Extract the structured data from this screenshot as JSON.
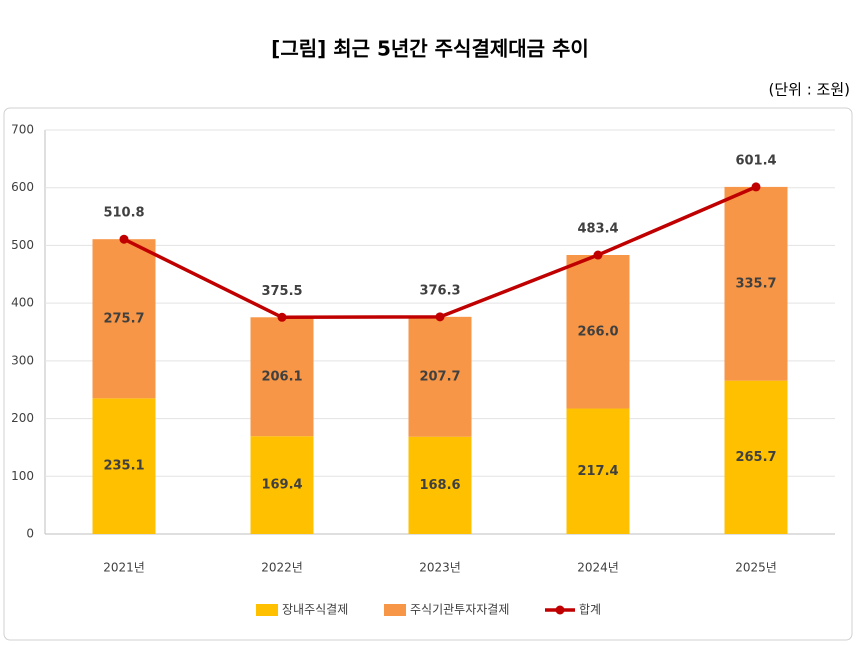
{
  "chart_data": {
    "type": "bar",
    "stacked": true,
    "title": "[그림] 최근 5년간 주식결제대금 추이",
    "subtitle": "(단위 : 조원)",
    "categories": [
      "2021년",
      "2022년",
      "2023년",
      "2024년",
      "2025년"
    ],
    "series": [
      {
        "name": "장내주식결제",
        "color": "#ffc000",
        "values": [
          235.1,
          169.4,
          168.6,
          217.4,
          265.7
        ]
      },
      {
        "name": "주식기관투자자결제",
        "color": "#f79646",
        "values": [
          275.7,
          206.1,
          207.7,
          266.0,
          335.7
        ],
        "value_labels": [
          "275.7",
          "206.1",
          "207.7",
          "266.0",
          "335.7"
        ]
      },
      {
        "name": "합계",
        "type": "line",
        "color": "#c00000",
        "values": [
          510.8,
          375.5,
          376.3,
          483.4,
          601.4
        ]
      }
    ],
    "ylim": [
      0,
      700
    ],
    "yticks": [
      0,
      100,
      200,
      300,
      400,
      500,
      600,
      700
    ],
    "grid": true,
    "legend": "bottom"
  }
}
